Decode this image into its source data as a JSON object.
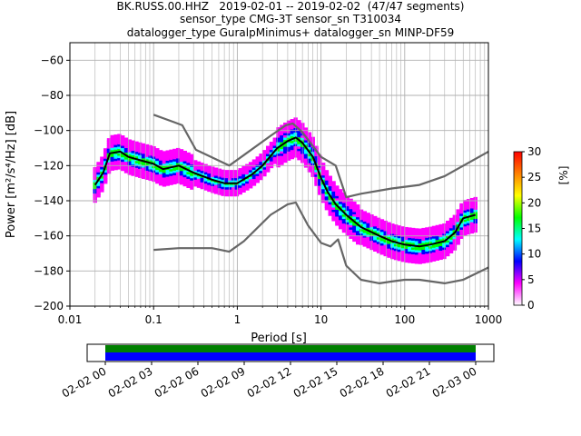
{
  "title_lines": [
    "BK.RUSS.00.HHZ   2019-02-01 -- 2019-02-02  (47/47 segments)",
    "sensor_type CMG-3T sensor_sn T310034",
    "datalogger_type GuralpMinimus+ datalogger_sn MINP-DF59"
  ],
  "chart_data": [
    {
      "type": "heatmap",
      "xlabel": "Period [s]",
      "ylabel": "Power [m²/s⁴/Hz] [dB]",
      "x_scale": "log",
      "xlim": [
        0.01,
        1000
      ],
      "ylim": [
        -200,
        -50
      ],
      "x_ticks": [
        {
          "value": 0.01,
          "label": "0.01"
        },
        {
          "value": 0.1,
          "label": "0.1"
        },
        {
          "value": 1,
          "label": "1"
        },
        {
          "value": 10,
          "label": "10"
        },
        {
          "value": 100,
          "label": "100"
        },
        {
          "value": 1000,
          "label": "1000"
        }
      ],
      "y_ticks": [
        {
          "value": -60,
          "label": "−60"
        },
        {
          "value": -80,
          "label": "−80"
        },
        {
          "value": -100,
          "label": "−100"
        },
        {
          "value": -120,
          "label": "−120"
        },
        {
          "value": -140,
          "label": "−140"
        },
        {
          "value": -160,
          "label": "−160"
        },
        {
          "value": -180,
          "label": "−180"
        },
        {
          "value": -200,
          "label": "−200"
        }
      ],
      "grid": true,
      "colorbar": {
        "label": "[%]",
        "range": [
          0,
          30
        ],
        "ticks": [
          {
            "value": 0,
            "label": "0"
          },
          {
            "value": 5,
            "label": "5"
          },
          {
            "value": 10,
            "label": "10"
          },
          {
            "value": 15,
            "label": "15"
          },
          {
            "value": 20,
            "label": "20"
          },
          {
            "value": 25,
            "label": "25"
          },
          {
            "value": 30,
            "label": "30"
          }
        ],
        "colors": [
          "#ffffff",
          "#ff00ff",
          "#0000ff",
          "#00ffff",
          "#00ff00",
          "#ffff00",
          "#ff8000",
          "#ff0000"
        ]
      },
      "series": [
        {
          "line_color": "#000000",
          "x": [
            0.02,
            0.025,
            0.03,
            0.04,
            0.05,
            0.07,
            0.1,
            0.13,
            0.2,
            0.3,
            0.5,
            0.7,
            1,
            1.5,
            2,
            3,
            4,
            5,
            6,
            8,
            10,
            12,
            15,
            20,
            30,
            50,
            70,
            100,
            150,
            200,
            300,
            400,
            500,
            700
          ],
          "y": [
            -131,
            -124,
            -113,
            -112,
            -115,
            -117,
            -119,
            -122,
            -120,
            -124,
            -128,
            -130,
            -130,
            -125,
            -120,
            -110,
            -106,
            -104,
            -107,
            -115,
            -127,
            -135,
            -142,
            -148,
            -155,
            -160,
            -163,
            -165,
            -166,
            -165,
            -163,
            -158,
            -150,
            -148
          ]
        },
        {
          "line_color": "#666666",
          "x": [
            0.1,
            0.17,
            0.22,
            0.32,
            0.8,
            1.2,
            2.5,
            3.8,
            4.6,
            6,
            10,
            15,
            20,
            30,
            70,
            150,
            300,
            1000
          ],
          "y": [
            -91,
            -95,
            -97,
            -111,
            -120,
            -114,
            -103,
            -97,
            -96,
            -101,
            -115,
            -120,
            -138,
            -136,
            -133,
            -131,
            -126,
            -112
          ]
        },
        {
          "line_color": "#666666",
          "x": [
            0.1,
            0.2,
            0.5,
            0.8,
            1.2,
            2.5,
            4,
            5,
            7,
            10,
            13,
            16,
            20,
            30,
            50,
            70,
            100,
            150,
            300,
            500,
            1000
          ],
          "y": [
            -168,
            -167,
            -167,
            -169,
            -163,
            -148,
            -142,
            -141,
            -154,
            -164,
            -166,
            -162,
            -177,
            -185,
            -187,
            -186,
            -185,
            -185,
            -187,
            -185,
            -178
          ]
        }
      ]
    },
    {
      "type": "bar",
      "x_ticks": [
        "02-02 00",
        "02-02 03",
        "02-02 06",
        "02-02 09",
        "02-02 12",
        "02-02 15",
        "02-02 18",
        "02-02 21",
        "02-03 00"
      ],
      "rows": [
        {
          "color": "#008000",
          "start_h": 0,
          "end_h": 24
        },
        {
          "color": "#0000ff",
          "start_h": 0,
          "end_h": 24
        }
      ]
    }
  ]
}
